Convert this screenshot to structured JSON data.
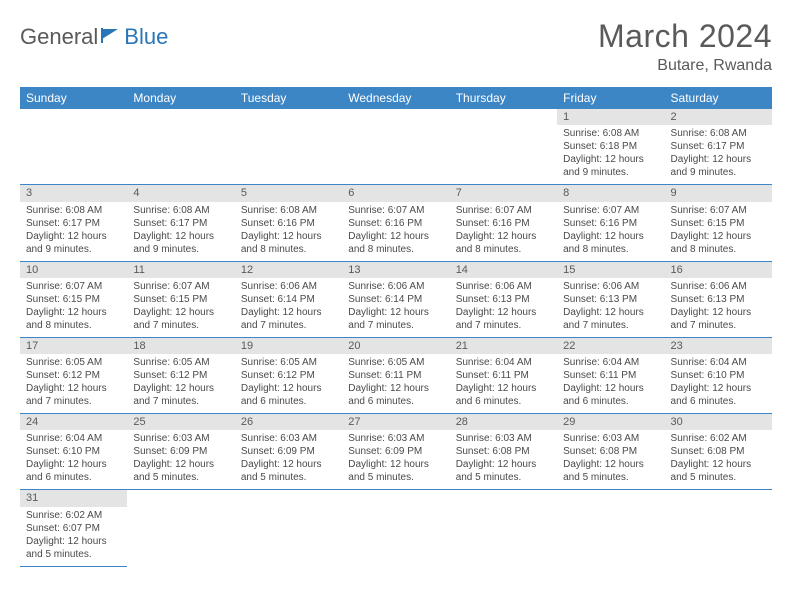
{
  "logo": {
    "text1": "General",
    "text2": "Blue"
  },
  "title": "March 2024",
  "location": "Butare, Rwanda",
  "colors": {
    "header_bg": "#3d86c6",
    "header_text": "#ffffff",
    "daynum_bg": "#e4e4e4",
    "text": "#4a4a4a",
    "logo_blue": "#2876b8",
    "row_border": "#3d86c6"
  },
  "fonts": {
    "title_size": 32,
    "location_size": 16,
    "dayhead_size": 12,
    "cell_size": 10
  },
  "day_names": [
    "Sunday",
    "Monday",
    "Tuesday",
    "Wednesday",
    "Thursday",
    "Friday",
    "Saturday"
  ],
  "weeks": [
    [
      null,
      null,
      null,
      null,
      null,
      {
        "n": "1",
        "sr": "Sunrise: 6:08 AM",
        "ss": "Sunset: 6:18 PM",
        "dl": "Daylight: 12 hours and 9 minutes."
      },
      {
        "n": "2",
        "sr": "Sunrise: 6:08 AM",
        "ss": "Sunset: 6:17 PM",
        "dl": "Daylight: 12 hours and 9 minutes."
      }
    ],
    [
      {
        "n": "3",
        "sr": "Sunrise: 6:08 AM",
        "ss": "Sunset: 6:17 PM",
        "dl": "Daylight: 12 hours and 9 minutes."
      },
      {
        "n": "4",
        "sr": "Sunrise: 6:08 AM",
        "ss": "Sunset: 6:17 PM",
        "dl": "Daylight: 12 hours and 9 minutes."
      },
      {
        "n": "5",
        "sr": "Sunrise: 6:08 AM",
        "ss": "Sunset: 6:16 PM",
        "dl": "Daylight: 12 hours and 8 minutes."
      },
      {
        "n": "6",
        "sr": "Sunrise: 6:07 AM",
        "ss": "Sunset: 6:16 PM",
        "dl": "Daylight: 12 hours and 8 minutes."
      },
      {
        "n": "7",
        "sr": "Sunrise: 6:07 AM",
        "ss": "Sunset: 6:16 PM",
        "dl": "Daylight: 12 hours and 8 minutes."
      },
      {
        "n": "8",
        "sr": "Sunrise: 6:07 AM",
        "ss": "Sunset: 6:16 PM",
        "dl": "Daylight: 12 hours and 8 minutes."
      },
      {
        "n": "9",
        "sr": "Sunrise: 6:07 AM",
        "ss": "Sunset: 6:15 PM",
        "dl": "Daylight: 12 hours and 8 minutes."
      }
    ],
    [
      {
        "n": "10",
        "sr": "Sunrise: 6:07 AM",
        "ss": "Sunset: 6:15 PM",
        "dl": "Daylight: 12 hours and 8 minutes."
      },
      {
        "n": "11",
        "sr": "Sunrise: 6:07 AM",
        "ss": "Sunset: 6:15 PM",
        "dl": "Daylight: 12 hours and 7 minutes."
      },
      {
        "n": "12",
        "sr": "Sunrise: 6:06 AM",
        "ss": "Sunset: 6:14 PM",
        "dl": "Daylight: 12 hours and 7 minutes."
      },
      {
        "n": "13",
        "sr": "Sunrise: 6:06 AM",
        "ss": "Sunset: 6:14 PM",
        "dl": "Daylight: 12 hours and 7 minutes."
      },
      {
        "n": "14",
        "sr": "Sunrise: 6:06 AM",
        "ss": "Sunset: 6:13 PM",
        "dl": "Daylight: 12 hours and 7 minutes."
      },
      {
        "n": "15",
        "sr": "Sunrise: 6:06 AM",
        "ss": "Sunset: 6:13 PM",
        "dl": "Daylight: 12 hours and 7 minutes."
      },
      {
        "n": "16",
        "sr": "Sunrise: 6:06 AM",
        "ss": "Sunset: 6:13 PM",
        "dl": "Daylight: 12 hours and 7 minutes."
      }
    ],
    [
      {
        "n": "17",
        "sr": "Sunrise: 6:05 AM",
        "ss": "Sunset: 6:12 PM",
        "dl": "Daylight: 12 hours and 7 minutes."
      },
      {
        "n": "18",
        "sr": "Sunrise: 6:05 AM",
        "ss": "Sunset: 6:12 PM",
        "dl": "Daylight: 12 hours and 7 minutes."
      },
      {
        "n": "19",
        "sr": "Sunrise: 6:05 AM",
        "ss": "Sunset: 6:12 PM",
        "dl": "Daylight: 12 hours and 6 minutes."
      },
      {
        "n": "20",
        "sr": "Sunrise: 6:05 AM",
        "ss": "Sunset: 6:11 PM",
        "dl": "Daylight: 12 hours and 6 minutes."
      },
      {
        "n": "21",
        "sr": "Sunrise: 6:04 AM",
        "ss": "Sunset: 6:11 PM",
        "dl": "Daylight: 12 hours and 6 minutes."
      },
      {
        "n": "22",
        "sr": "Sunrise: 6:04 AM",
        "ss": "Sunset: 6:11 PM",
        "dl": "Daylight: 12 hours and 6 minutes."
      },
      {
        "n": "23",
        "sr": "Sunrise: 6:04 AM",
        "ss": "Sunset: 6:10 PM",
        "dl": "Daylight: 12 hours and 6 minutes."
      }
    ],
    [
      {
        "n": "24",
        "sr": "Sunrise: 6:04 AM",
        "ss": "Sunset: 6:10 PM",
        "dl": "Daylight: 12 hours and 6 minutes."
      },
      {
        "n": "25",
        "sr": "Sunrise: 6:03 AM",
        "ss": "Sunset: 6:09 PM",
        "dl": "Daylight: 12 hours and 5 minutes."
      },
      {
        "n": "26",
        "sr": "Sunrise: 6:03 AM",
        "ss": "Sunset: 6:09 PM",
        "dl": "Daylight: 12 hours and 5 minutes."
      },
      {
        "n": "27",
        "sr": "Sunrise: 6:03 AM",
        "ss": "Sunset: 6:09 PM",
        "dl": "Daylight: 12 hours and 5 minutes."
      },
      {
        "n": "28",
        "sr": "Sunrise: 6:03 AM",
        "ss": "Sunset: 6:08 PM",
        "dl": "Daylight: 12 hours and 5 minutes."
      },
      {
        "n": "29",
        "sr": "Sunrise: 6:03 AM",
        "ss": "Sunset: 6:08 PM",
        "dl": "Daylight: 12 hours and 5 minutes."
      },
      {
        "n": "30",
        "sr": "Sunrise: 6:02 AM",
        "ss": "Sunset: 6:08 PM",
        "dl": "Daylight: 12 hours and 5 minutes."
      }
    ],
    [
      {
        "n": "31",
        "sr": "Sunrise: 6:02 AM",
        "ss": "Sunset: 6:07 PM",
        "dl": "Daylight: 12 hours and 5 minutes."
      },
      null,
      null,
      null,
      null,
      null,
      null
    ]
  ]
}
